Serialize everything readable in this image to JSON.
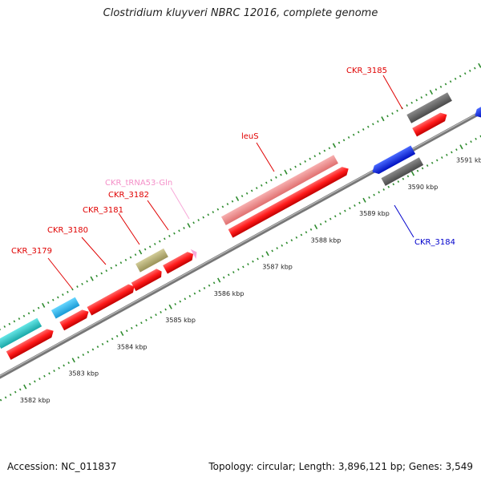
{
  "title": "Clostridium kluyveri NBRC 12016, complete genome",
  "accession": "Accession: NC_011837",
  "summary": "Topology: circular; Length: 3,896,121 bp; Genes: 3,549",
  "colors": {
    "cds_fwd": "#d83a3a",
    "cds_rev": "#2255cc",
    "gray_dark": "#6a6a6a",
    "gray_light": "#bbbbbb",
    "teal": "#33c8c8",
    "sky": "#33bbee",
    "olive": "#b8b078",
    "pink": "#f08a9a",
    "trna": "#f7a8d8",
    "backbone": "#999999",
    "tick": "#2e8b2e"
  },
  "ticks": [
    "3582 kbp",
    "3583 kbp",
    "3584 kbp",
    "3585 kbp",
    "3586 kbp",
    "3587 kbp",
    "3588 kbp",
    "3589 kbp",
    "3590 kbp",
    "3591 kbp"
  ],
  "labels": {
    "ckr3179": "CKR_3179",
    "ckr3180": "CKR_3180",
    "ckr3181": "CKR_3181",
    "ckr3182": "CKR_3182",
    "trna": "CKR_tRNA53-Gln",
    "leus": "leuS",
    "ckr3184": "CKR_3184",
    "ckr3185": "CKR_3185"
  }
}
